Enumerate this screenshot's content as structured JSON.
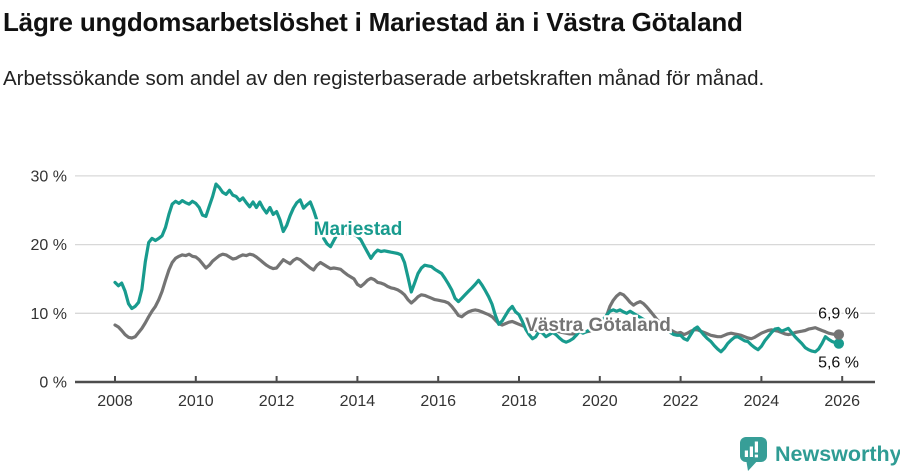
{
  "header": {
    "title": "Lägre ungdomsarbetslöshet i Mariestad än i Västra Götaland",
    "subtitle": "Arbetssökande som andel av den registerbaserade arbetskraften månad för månad."
  },
  "footer": {
    "brand": "Newsworthy",
    "brand_color": "#2f9c94"
  },
  "chart_data": {
    "type": "line",
    "x_start_year": 2008,
    "points_per_month": 1,
    "x_ticks": [
      2008,
      2010,
      2012,
      2014,
      2016,
      2018,
      2020,
      2022,
      2024,
      2026
    ],
    "y_ticks": [
      {
        "value": 0,
        "label": "0 %"
      },
      {
        "value": 10,
        "label": "10 %"
      },
      {
        "value": 20,
        "label": "20 %"
      },
      {
        "value": 30,
        "label": "30 %"
      }
    ],
    "ylim": [
      0,
      33
    ],
    "grid": true,
    "legend_position": "inline-labels",
    "axis_color": "#4d4d4d",
    "grid_color": "#d8d8d8",
    "tick_label_color": "#333333",
    "annotation_color": "#111111",
    "series": [
      {
        "name": "Mariestad",
        "color": "#189b8e",
        "end_label": "5,6 %",
        "end_value": 5.6,
        "values": [
          14.5,
          14.0,
          14.4,
          13.2,
          11.4,
          10.7,
          11.0,
          11.6,
          13.5,
          17.5,
          20.3,
          20.9,
          20.6,
          20.9,
          21.3,
          22.5,
          24.4,
          25.9,
          26.3,
          26.0,
          26.4,
          26.1,
          25.9,
          26.3,
          26.0,
          25.4,
          24.3,
          24.1,
          25.6,
          27.0,
          28.8,
          28.3,
          27.6,
          27.3,
          27.9,
          27.2,
          27.0,
          26.4,
          26.8,
          26.1,
          25.5,
          26.2,
          25.4,
          26.2,
          25.3,
          24.6,
          25.4,
          24.4,
          24.8,
          23.6,
          21.9,
          22.8,
          24.2,
          25.3,
          26.1,
          26.5,
          25.3,
          25.8,
          26.2,
          25.0,
          23.5,
          22.0,
          20.9,
          20.1,
          19.7,
          20.6,
          21.5,
          21.8,
          21.4,
          21.6,
          21.3,
          21.5,
          21.2,
          20.7,
          19.8,
          18.9,
          18.0,
          18.7,
          19.2,
          19.0,
          19.1,
          19.0,
          18.9,
          18.8,
          18.7,
          18.5,
          17.4,
          15.3,
          13.1,
          14.4,
          15.8,
          16.6,
          17.0,
          16.9,
          16.8,
          16.4,
          16.1,
          15.8,
          15.1,
          14.3,
          13.4,
          12.2,
          11.7,
          12.2,
          12.7,
          13.2,
          13.7,
          14.2,
          14.8,
          14.1,
          13.3,
          12.4,
          11.3,
          9.7,
          8.4,
          8.9,
          9.7,
          10.5,
          11.0,
          10.2,
          9.8,
          8.8,
          7.7,
          6.9,
          6.3,
          6.6,
          7.4,
          7.1,
          6.6,
          6.9,
          7.2,
          6.9,
          6.4,
          6.0,
          5.8,
          6.0,
          6.3,
          6.8,
          7.4,
          7.1,
          7.3,
          7.6,
          7.9,
          8.3,
          8.8,
          9.1,
          9.7,
          10.3,
          10.5,
          10.3,
          10.5,
          10.2,
          10.0,
          10.3,
          10.0,
          9.7,
          9.4,
          9.1,
          8.7,
          8.3,
          7.9,
          7.6,
          7.8,
          7.4,
          7.8,
          7.2,
          6.9,
          6.8,
          6.8,
          6.3,
          6.1,
          6.9,
          7.7,
          8.0,
          7.4,
          6.8,
          6.3,
          5.9,
          5.3,
          4.8,
          4.4,
          4.9,
          5.6,
          6.1,
          6.5,
          6.6,
          6.3,
          6.0,
          5.9,
          5.4,
          5.0,
          4.7,
          5.2,
          6.0,
          6.6,
          7.2,
          7.7,
          7.8,
          7.4,
          7.6,
          7.8,
          7.2,
          6.6,
          6.1,
          5.6,
          5.0,
          4.7,
          4.5,
          4.4,
          4.8,
          5.6,
          6.6,
          6.2,
          5.9,
          5.7,
          5.6
        ]
      },
      {
        "name": "Västra Götaland",
        "color": "#747474",
        "end_label": "6,9 %",
        "end_value": 6.9,
        "values": [
          8.3,
          8.0,
          7.5,
          6.9,
          6.5,
          6.4,
          6.6,
          7.2,
          7.8,
          8.6,
          9.5,
          10.3,
          11.0,
          12.0,
          13.2,
          14.8,
          16.3,
          17.4,
          18.0,
          18.3,
          18.5,
          18.4,
          18.6,
          18.3,
          18.2,
          17.8,
          17.2,
          16.6,
          17.0,
          17.6,
          18.0,
          18.4,
          18.6,
          18.5,
          18.2,
          17.9,
          18.0,
          18.3,
          18.5,
          18.4,
          18.6,
          18.5,
          18.2,
          17.8,
          17.4,
          17.0,
          16.7,
          16.5,
          16.6,
          17.2,
          17.8,
          17.5,
          17.2,
          17.7,
          18.0,
          17.8,
          17.4,
          17.0,
          16.6,
          16.3,
          17.0,
          17.4,
          17.1,
          16.8,
          16.5,
          16.6,
          16.5,
          16.4,
          16.0,
          15.6,
          15.3,
          15.0,
          14.2,
          13.9,
          14.3,
          14.8,
          15.1,
          14.9,
          14.5,
          14.4,
          14.2,
          13.9,
          13.7,
          13.6,
          13.4,
          13.1,
          12.7,
          12.0,
          11.5,
          11.9,
          12.4,
          12.7,
          12.6,
          12.4,
          12.2,
          12.0,
          11.9,
          11.8,
          11.7,
          11.5,
          11.0,
          10.4,
          9.7,
          9.5,
          9.9,
          10.2,
          10.4,
          10.5,
          10.4,
          10.2,
          10.0,
          9.8,
          9.5,
          9.0,
          8.5,
          8.3,
          8.5,
          8.7,
          8.8,
          8.6,
          8.4,
          8.2,
          8.0,
          7.8,
          7.6,
          7.5,
          7.7,
          7.9,
          7.8,
          7.6,
          7.5,
          7.4,
          7.3,
          7.2,
          7.1,
          7.0,
          7.0,
          7.2,
          7.5,
          7.4,
          7.3,
          7.4,
          7.6,
          7.9,
          8.4,
          8.8,
          9.6,
          11.0,
          11.9,
          12.5,
          12.9,
          12.7,
          12.2,
          11.6,
          11.2,
          11.5,
          11.7,
          11.4,
          10.9,
          10.3,
          9.7,
          9.1,
          8.6,
          8.2,
          7.9,
          7.6,
          7.3,
          7.1,
          7.2,
          6.9,
          7.1,
          7.4,
          7.6,
          7.6,
          7.4,
          7.2,
          7.0,
          6.8,
          6.7,
          6.6,
          6.6,
          6.8,
          7.0,
          7.1,
          7.0,
          6.9,
          6.8,
          6.6,
          6.4,
          6.3,
          6.5,
          6.8,
          7.1,
          7.3,
          7.5,
          7.6,
          7.5,
          7.4,
          7.2,
          7.0,
          6.9,
          7.0,
          7.2,
          7.3,
          7.4,
          7.5,
          7.7,
          7.8,
          7.9,
          7.7,
          7.5,
          7.3,
          7.1,
          7.0,
          6.9,
          6.9
        ]
      }
    ]
  }
}
